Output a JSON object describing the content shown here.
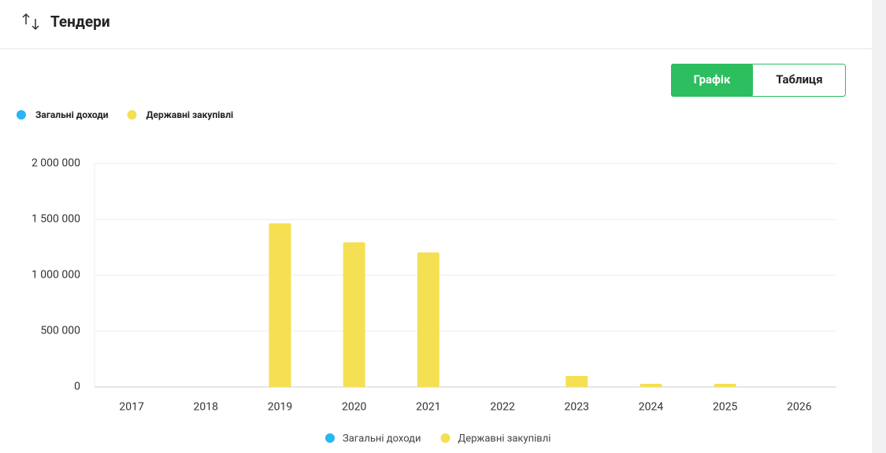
{
  "header": {
    "title": "Тендери"
  },
  "tabs": [
    "Графік",
    "Таблиця"
  ],
  "chart_data": {
    "type": "bar",
    "categories": [
      "2017",
      "2018",
      "2019",
      "2020",
      "2021",
      "2022",
      "2023",
      "2024",
      "2025",
      "2026"
    ],
    "series": [
      {
        "name": "Загальні доходи",
        "color": "#29b6f6",
        "values": [
          null,
          null,
          null,
          null,
          null,
          null,
          null,
          null,
          null,
          null
        ]
      },
      {
        "name": "Державні закупівлі",
        "color": "#f4e052",
        "values": [
          null,
          null,
          1465000,
          1295000,
          1204000,
          null,
          99000,
          28000,
          28000,
          null
        ]
      }
    ],
    "ylim": [
      0,
      2000000
    ],
    "yticks": [
      0,
      {
        "value": 500000,
        "label": "500 000"
      },
      {
        "value": 1000000,
        "label": "1 000 000"
      },
      {
        "value": 1500000,
        "label": "1 500 000"
      },
      {
        "value": 2000000,
        "label": "2 000 000"
      }
    ],
    "grid": true
  }
}
